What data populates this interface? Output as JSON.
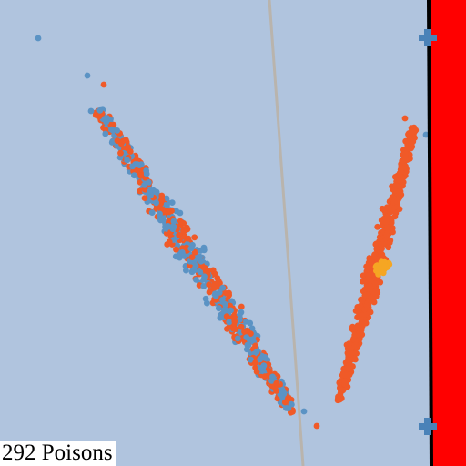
{
  "counter": {
    "text": "292 Poisons"
  },
  "colors": {
    "background": "#b0c4de",
    "blue_team": "#5b93c4",
    "orange_team": "#f05a28",
    "poison": "#f5a623",
    "boundary_wall": "#ff0000",
    "wall_edge": "#000000",
    "divider_line": "#b9b4ad",
    "marker": "#4a82b8"
  },
  "icons": {
    "markers": [
      "plus-marker-icon",
      "plus-marker-icon"
    ]
  }
}
